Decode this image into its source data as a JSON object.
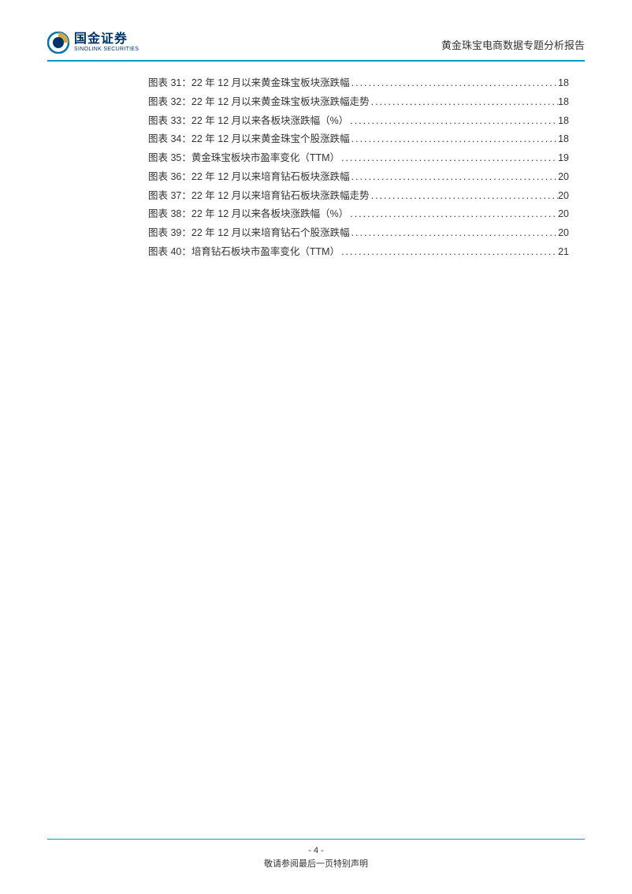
{
  "header": {
    "logo_cn": "国金证券",
    "logo_en": "SINOLINK SECURITIES",
    "report_title": "黄金珠宝电商数据专题分析报告"
  },
  "toc": {
    "entries": [
      {
        "label": "图表 31：",
        "title": "22 年 12 月以来黄金珠宝板块涨跌幅",
        "page": "18"
      },
      {
        "label": "图表 32：",
        "title": "22 年 12 月以来黄金珠宝板块涨跌幅走势",
        "page": "18"
      },
      {
        "label": "图表 33：",
        "title": "22 年 12 月以来各板块涨跌幅（%）",
        "page": "18"
      },
      {
        "label": "图表 34：",
        "title": "22 年 12 月以来黄金珠宝个股涨跌幅",
        "page": "18"
      },
      {
        "label": "图表 35：",
        "title": "黄金珠宝板块市盈率变化（TTM）",
        "page": "19"
      },
      {
        "label": "图表 36：",
        "title": "22 年 12 月以来培育钻石板块涨跌幅",
        "page": "20"
      },
      {
        "label": "图表 37：",
        "title": "22 年 12 月以来培育钻石板块涨跌幅走势",
        "page": "20"
      },
      {
        "label": "图表 38：",
        "title": "22 年 12 月以来各板块涨跌幅（%）",
        "page": "20"
      },
      {
        "label": "图表 39：",
        "title": "22 年 12 月以来培育钻石个股涨跌幅",
        "page": "20"
      },
      {
        "label": "图表 40：",
        "title": "培育钻石板块市盈率变化（TTM）",
        "page": "21"
      }
    ]
  },
  "footer": {
    "page_number": "- 4 -",
    "disclaimer": "敬请参阅最后一页特别声明"
  },
  "colors": {
    "accent": "#0099cc",
    "logo_dark": "#003366",
    "logo_gold": "#d4a845",
    "text": "#333333",
    "background": "#ffffff"
  }
}
